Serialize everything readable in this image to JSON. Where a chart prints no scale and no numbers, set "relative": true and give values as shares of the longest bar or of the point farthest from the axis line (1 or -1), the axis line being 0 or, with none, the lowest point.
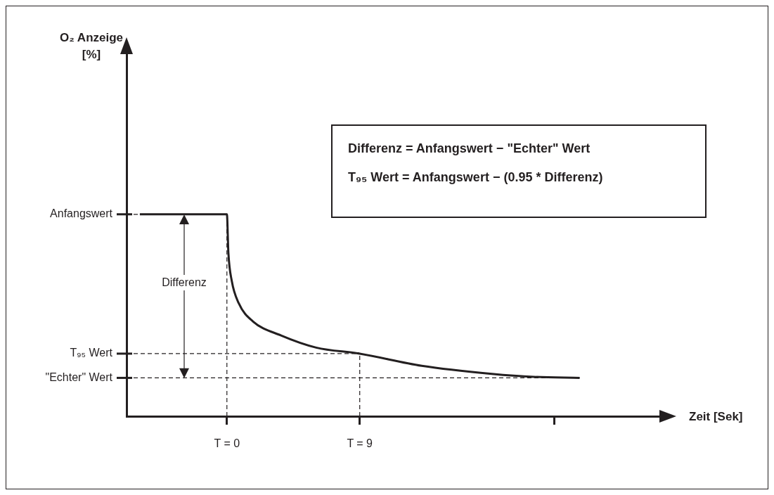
{
  "chart_data": {
    "type": "line",
    "relative": true,
    "xlabel": "Zeit [Sek]",
    "annotations": [
      "Differenz = Anfangswert − \"Echter\" Wert",
      "T₉₅ Wert = Anfangswert − (0.95 * Differenz)",
      "Differenz",
      "O₂ Anzeige [%]"
    ],
    "xlim": [
      -6.8,
      29.4
    ],
    "xticks": [
      {
        "value": 0,
        "label": "T = 0"
      },
      {
        "value": 9,
        "label": "T = 9"
      },
      {
        "value": 22.2,
        "label": null
      }
    ],
    "series": [
      {
        "color": "#231f20",
        "x": [
          -5.9,
          0,
          0.1,
          0.33,
          0.8,
          1.76,
          3.67,
          6.05,
          9,
          13.2,
          17.95,
          20.8,
          23.9
        ],
        "values": [
          1,
          1,
          0.81,
          0.67,
          0.56,
          0.47,
          0.4,
          0.34,
          0.31,
          0.25,
          0.21,
          0.195,
          0.19
        ]
      }
    ],
    "ref_lines": [
      {
        "axis": "y",
        "value": 1,
        "label": "Anfangswert",
        "line_style": "dashed",
        "color": "#231f20"
      },
      {
        "axis": "y",
        "value": 0.31,
        "label": "T₉₅ Wert",
        "line_style": "dashed",
        "color": "#231f20"
      },
      {
        "axis": "y",
        "value": 0.19,
        "label": "\"Echter\" Wert",
        "line_style": "dashed",
        "color": "#231f20"
      },
      {
        "axis": "x",
        "value": 0,
        "line_style": "dashed",
        "color": "#231f20"
      },
      {
        "axis": "x",
        "value": 9,
        "line_style": "dashed",
        "color": "#231f20"
      }
    ],
    "grid": false,
    "legend": false,
    "marker": "none",
    "line_style": "solid"
  }
}
